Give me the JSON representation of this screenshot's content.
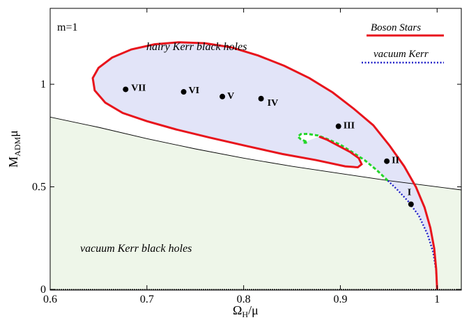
{
  "chart_data": {
    "type": "line",
    "xlabel": {
      "main": "Ω",
      "sub": "H",
      "rest": "/μ"
    },
    "ylabel": {
      "main": "M",
      "sub": "ADM",
      "rest": "μ"
    },
    "xlim": [
      0.6,
      1.025
    ],
    "ylim": [
      0,
      1.37
    ],
    "xticks": [
      0.6,
      0.7,
      0.8,
      0.9,
      1
    ],
    "xtick_labels": [
      "0.6",
      "0.7",
      "0.8",
      "0.9",
      "1"
    ],
    "yticks": [
      0,
      0.5,
      1
    ],
    "ytick_labels": [
      "0",
      "0.5",
      "1"
    ],
    "grid": false,
    "legend_position": "top-right",
    "annotation": "m=1",
    "region_labels": {
      "hairy": "hairy Kerr black holes",
      "vacuum": "vacuum Kerr black holes"
    },
    "colors": {
      "boson": "#e8141c",
      "vacuum_kerr": "#1f1fc8",
      "existence_line": "#24d62a",
      "hairy_fill": "#e2e4f8",
      "vacuum_fill": "#eef6e9",
      "extremal_line": "#000000"
    },
    "series": [
      {
        "name": "Boson Stars",
        "style": "solid",
        "x": [
          1.0,
          0.999,
          0.997,
          0.993,
          0.987,
          0.978,
          0.966,
          0.951,
          0.934,
          0.914,
          0.892,
          0.868,
          0.842,
          0.815,
          0.787,
          0.76,
          0.733,
          0.708,
          0.684,
          0.664,
          0.65,
          0.644,
          0.646,
          0.657,
          0.675,
          0.7,
          0.73,
          0.765,
          0.802,
          0.84,
          0.875,
          0.905,
          0.918,
          0.922,
          0.919,
          0.91,
          0.898,
          0.886,
          0.878
        ],
        "y": [
          0.0,
          0.1,
          0.2,
          0.3,
          0.4,
          0.5,
          0.6,
          0.7,
          0.8,
          0.88,
          0.96,
          1.03,
          1.09,
          1.14,
          1.18,
          1.2,
          1.205,
          1.195,
          1.17,
          1.13,
          1.08,
          1.03,
          0.97,
          0.91,
          0.86,
          0.82,
          0.78,
          0.74,
          0.7,
          0.66,
          0.63,
          0.6,
          0.595,
          0.61,
          0.64,
          0.67,
          0.7,
          0.73,
          0.745
        ]
      },
      {
        "name": "vacuum Kerr",
        "style": "dotted",
        "x": [
          1.0,
          0.999,
          0.996,
          0.99,
          0.981,
          0.97,
          0.958,
          0.949
        ],
        "y": [
          0.0,
          0.09,
          0.18,
          0.27,
          0.36,
          0.43,
          0.49,
          0.53
        ]
      },
      {
        "style": "dashed",
        "x": [
          0.949,
          0.938,
          0.925,
          0.912,
          0.9,
          0.888,
          0.877,
          0.866,
          0.859,
          0.856,
          0.859,
          0.866,
          0.864,
          0.862
        ],
        "y": [
          0.53,
          0.58,
          0.63,
          0.67,
          0.705,
          0.73,
          0.75,
          0.758,
          0.757,
          0.745,
          0.732,
          0.718,
          0.715,
          0.716
        ]
      },
      {
        "style": "thin",
        "x": [
          0.6,
          0.65,
          0.7,
          0.75,
          0.8,
          0.85,
          0.9,
          0.95,
          1.0,
          1.025
        ],
        "y": [
          0.84,
          0.79,
          0.735,
          0.685,
          0.64,
          0.6,
          0.565,
          0.53,
          0.5,
          0.485
        ]
      }
    ],
    "points": [
      {
        "label": "VII",
        "x": 0.678,
        "y": 0.975
      },
      {
        "label": "VI",
        "x": 0.738,
        "y": 0.963
      },
      {
        "label": "V",
        "x": 0.778,
        "y": 0.94
      },
      {
        "label": "IV",
        "x": 0.818,
        "y": 0.93
      },
      {
        "label": "III",
        "x": 0.898,
        "y": 0.795
      },
      {
        "label": "II",
        "x": 0.948,
        "y": 0.625
      },
      {
        "label": "I",
        "x": 0.973,
        "y": 0.415
      }
    ]
  }
}
